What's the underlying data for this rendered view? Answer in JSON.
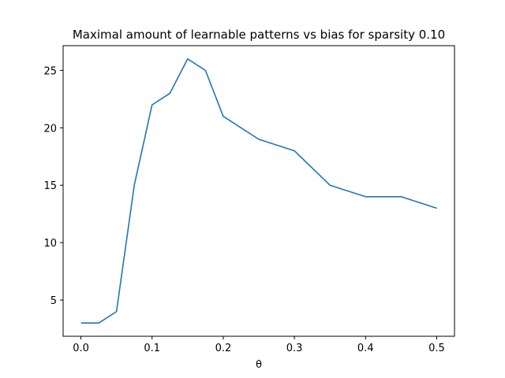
{
  "chart_data": {
    "type": "line",
    "title": "Maximal amount of learnable patterns vs bias for sparsity 0.10",
    "xlabel": "θ",
    "ylabel": "",
    "xlim": [
      -0.025,
      0.525
    ],
    "ylim": [
      1.85,
      27.15
    ],
    "xticks": [
      0.0,
      0.1,
      0.2,
      0.3,
      0.4,
      0.5
    ],
    "xtick_labels": [
      "0.0",
      "0.1",
      "0.2",
      "0.3",
      "0.4",
      "0.5"
    ],
    "yticks": [
      5,
      10,
      15,
      20,
      25
    ],
    "ytick_labels": [
      "5",
      "10",
      "15",
      "20",
      "25"
    ],
    "grid": false,
    "series": [
      {
        "color": "#1f77b4",
        "x": [
          0.0,
          0.025,
          0.05,
          0.075,
          0.1,
          0.125,
          0.15,
          0.175,
          0.2,
          0.25,
          0.3,
          0.35,
          0.4,
          0.45,
          0.5
        ],
        "y": [
          3,
          3,
          4,
          15,
          22,
          23,
          26,
          25,
          21,
          19,
          18,
          15,
          14,
          14,
          13
        ]
      }
    ]
  }
}
